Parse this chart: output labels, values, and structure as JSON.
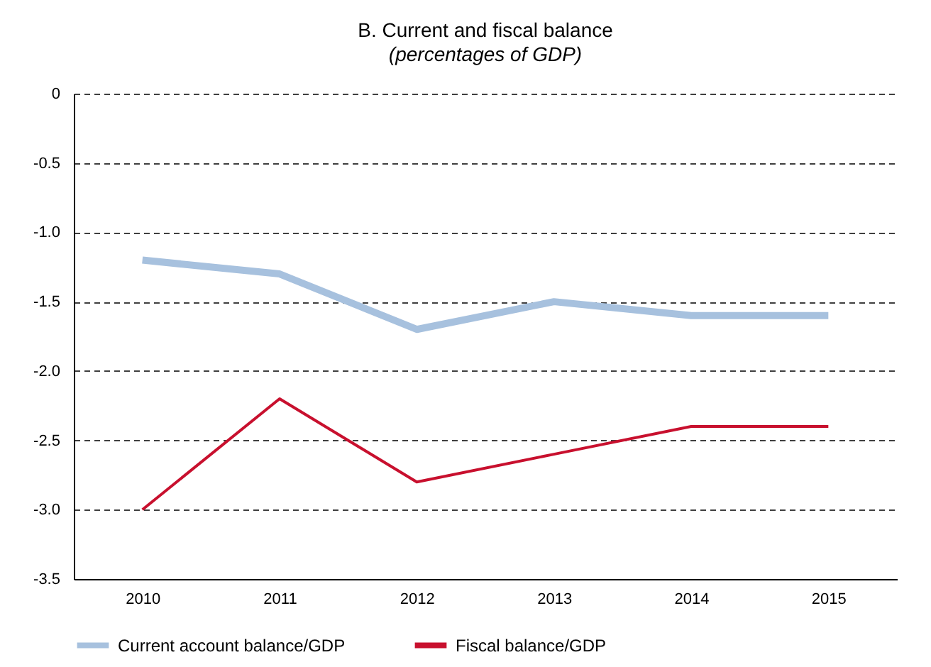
{
  "chart_data": {
    "type": "line",
    "title": "B. Current and fiscal balance",
    "subtitle": "(percentages of GDP)",
    "categories": [
      "2010",
      "2011",
      "2012",
      "2013",
      "2014",
      "2015"
    ],
    "series": [
      {
        "name": "Current account balance/GDP",
        "color": "#a7c1de",
        "values": [
          -1.2,
          -1.3,
          -1.7,
          -1.5,
          -1.6,
          -1.6
        ]
      },
      {
        "name": "Fiscal balance/GDP",
        "color": "#c8102e",
        "values": [
          -3.0,
          -2.2,
          -2.8,
          -2.6,
          -2.4,
          -2.4
        ]
      }
    ],
    "ylim": [
      -3.5,
      0
    ],
    "yticks": [
      0,
      -0.5,
      {
        "value": -1,
        "label": "-1.0"
      },
      -1.5,
      {
        "value": -2,
        "label": "-2.0"
      },
      -2.5,
      {
        "value": -3,
        "label": "-3.0"
      },
      -3.5
    ],
    "grid": "y",
    "legend": "bottom",
    "marker": "none",
    "line_style": "solid"
  }
}
